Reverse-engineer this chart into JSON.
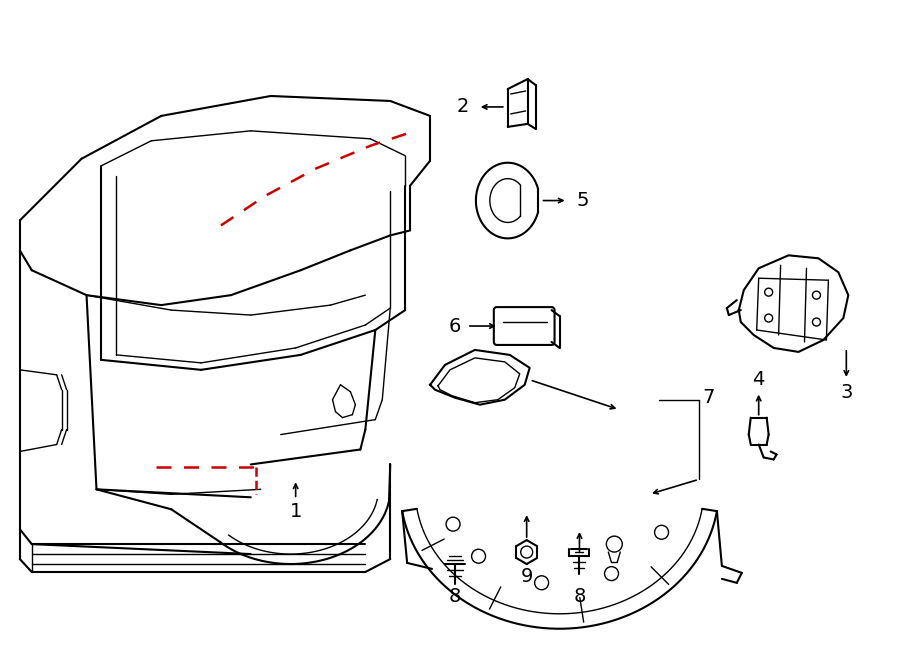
{
  "bg_color": "#ffffff",
  "line_color": "#000000",
  "red_dashed_color": "#cc0000",
  "fig_width": 9.0,
  "fig_height": 6.61,
  "dpi": 100
}
